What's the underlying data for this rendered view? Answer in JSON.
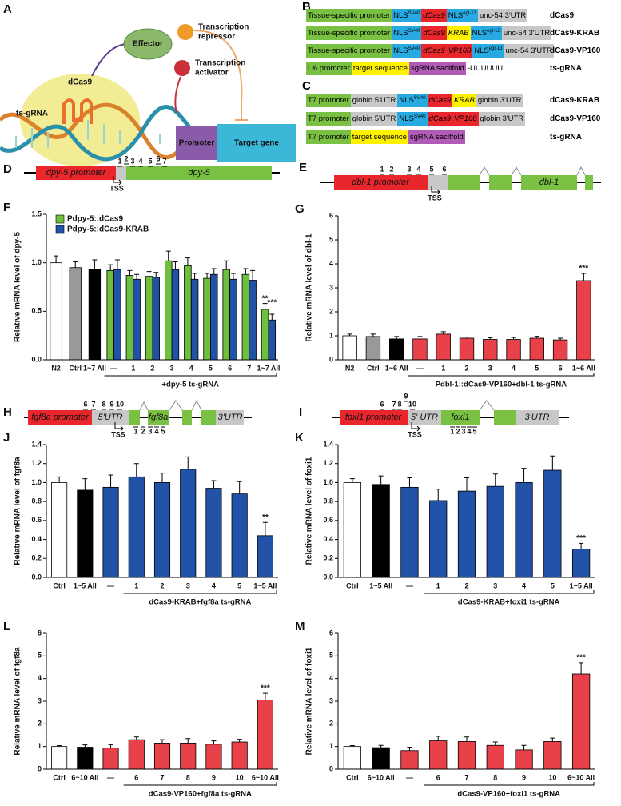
{
  "figure": {
    "panel_a": {
      "letter": "A",
      "effector": "Effector",
      "repressor": [
        "Transcription",
        "repressor"
      ],
      "activator": [
        "Transcription",
        "activator"
      ],
      "dcas9": "dCas9",
      "ts_grna": "ts-gRNA",
      "promoter": "Promoter",
      "target_gene": "Target gene"
    },
    "panel_b": {
      "letter": "B",
      "rows": [
        {
          "segments": [
            {
              "text": "Tissue-specific promoter",
              "color": "#7ac143"
            },
            {
              "text": "NLS",
              "sup": "SV40",
              "color": "#27aae1"
            },
            {
              "text": "dCas9",
              "color": "#e8262b",
              "italic": true
            },
            {
              "text": "NLS",
              "sup": "egl-13",
              "color": "#27aae1"
            },
            {
              "text": "unc-54 3'UTR",
              "color": "#c8c8c8"
            }
          ],
          "name": "dCas9"
        },
        {
          "segments": [
            {
              "text": "Tissue-specific promoter",
              "color": "#7ac143"
            },
            {
              "text": "NLS",
              "sup": "SV40",
              "color": "#27aae1"
            },
            {
              "text": "dCas9",
              "color": "#e8262b",
              "italic": true
            },
            {
              "text": "KRAB",
              "color": "#fff200",
              "italic": true
            },
            {
              "text": "NLS",
              "sup": "egl-13",
              "color": "#27aae1"
            },
            {
              "text": "unc-54 3'UTR",
              "color": "#c8c8c8"
            }
          ],
          "name": "dCas9-KRAB"
        },
        {
          "segments": [
            {
              "text": "Tissue-specific promoter",
              "color": "#7ac143"
            },
            {
              "text": "NLS",
              "sup": "SV40",
              "color": "#27aae1"
            },
            {
              "text": "dCas9",
              "color": "#e8262b",
              "italic": true
            },
            {
              "text": "VP160",
              "color": "#e8262b",
              "italic": true
            },
            {
              "text": "NLS",
              "sup": "egl-13",
              "color": "#27aae1"
            },
            {
              "text": "unc-54 3'UTR",
              "color": "#c8c8c8"
            }
          ],
          "name": "dCas9-VP160"
        },
        {
          "segments": [
            {
              "text": "U6 promoter",
              "color": "#7ac143"
            },
            {
              "text": "target sequence",
              "color": "#fff200"
            },
            {
              "text": "sgRNA saclffold",
              "color": "#b05bb5"
            },
            {
              "text": "-UUUUUU",
              "color": "#ffffff"
            }
          ],
          "name": "ts-gRNA"
        }
      ]
    },
    "panel_c": {
      "letter": "C",
      "rows": [
        {
          "segments": [
            {
              "text": "T7 promoter",
              "color": "#7ac143"
            },
            {
              "text": "globin 5'UTR",
              "color": "#c8c8c8"
            },
            {
              "text": "NLS",
              "sup": "SV40",
              "color": "#27aae1"
            },
            {
              "text": "dCas9",
              "color": "#e8262b",
              "italic": true
            },
            {
              "text": "KRAB",
              "color": "#fff200",
              "italic": true
            },
            {
              "text": "globin 3'UTR",
              "color": "#c8c8c8"
            }
          ],
          "name": "dCas9-KRAB"
        },
        {
          "segments": [
            {
              "text": "T7 promoter",
              "color": "#7ac143"
            },
            {
              "text": "globin 5'UTR",
              "color": "#c8c8c8"
            },
            {
              "text": "NLS",
              "sup": "SV40",
              "color": "#27aae1"
            },
            {
              "text": "dCas9",
              "color": "#e8262b",
              "italic": true
            },
            {
              "text": "VP160",
              "color": "#e8262b",
              "italic": true
            },
            {
              "text": "globin 3'UTR",
              "color": "#c8c8c8"
            }
          ],
          "name": "dCas9-VP160"
        },
        {
          "segments": [
            {
              "text": "T7 promoter",
              "color": "#7ac143"
            },
            {
              "text": "target sequence",
              "color": "#fff200"
            },
            {
              "text": "sgRNA saclffold",
              "color": "#b05bb5"
            }
          ],
          "name": "ts-gRNA"
        }
      ]
    },
    "panel_d": {
      "letter": "D",
      "promoter": "dpy-5 promoter",
      "gene": "dpy-5",
      "tss": "TSS",
      "sites": [
        "1",
        "2",
        "3",
        "4",
        "5",
        "6",
        "7"
      ]
    },
    "panel_e": {
      "letter": "E",
      "promoter": "dbl-1 promoter",
      "gene": "dbl-1",
      "tss": "TSS",
      "sites": [
        "1",
        "2",
        "3",
        "4",
        "5",
        "6"
      ]
    },
    "panel_h": {
      "letter": "H",
      "promoter": "fgf8a promoter",
      "utr5": "5'UTR",
      "gene": "fgf8a",
      "utr3": "3'UTR",
      "tss": "TSS",
      "sites": [
        "6",
        "7",
        "8",
        "9",
        "10"
      ],
      "sites_below": [
        "1",
        "2",
        "3",
        "4",
        "5"
      ]
    },
    "panel_i": {
      "letter": "I",
      "promoter": "foxi1 promoter",
      "utr5": "5' UTR",
      "gene": "foxi1",
      "utr3": "3'UTR",
      "tss": "TSS",
      "sites": [
        "6",
        "7",
        "8",
        "9",
        "10"
      ],
      "sites_below": [
        "1",
        "2",
        "3",
        "4",
        "5"
      ]
    }
  },
  "chart_data": [
    {
      "type": "bar",
      "letter": "F",
      "ylabel": "Relative mRNA level of dpy-5",
      "xlabel": "+dpy-5 ts-gRNA",
      "categories": [
        "N2",
        "Ctrl",
        "1~7 All",
        "—",
        "1",
        "2",
        "3",
        "4",
        "5",
        "6",
        "7",
        "1~7 All"
      ],
      "series": [
        {
          "colors": [
            "#ffffff",
            "#999999",
            "#000000",
            null,
            null,
            null,
            null,
            null,
            null,
            null,
            null,
            null
          ],
          "values": [
            1.0,
            0.95,
            0.93,
            null,
            null,
            null,
            null,
            null,
            null,
            null,
            null,
            null
          ],
          "errors": [
            0.07,
            0.06,
            0.1,
            null,
            null,
            null,
            null,
            null,
            null,
            null,
            null,
            null
          ]
        },
        {
          "name": "Pdpy-5::dCas9",
          "color": "#6fbf3f",
          "values": [
            null,
            null,
            null,
            0.92,
            0.87,
            0.86,
            1.02,
            0.97,
            0.84,
            0.93,
            0.88,
            0.52
          ],
          "errors": [
            null,
            null,
            null,
            0.06,
            0.05,
            0.05,
            0.1,
            0.08,
            0.05,
            0.09,
            0.06,
            0.06
          ]
        },
        {
          "name": "Pdpy-5::dCas9-KRAB",
          "color": "#2251a8",
          "values": [
            null,
            null,
            null,
            0.93,
            0.83,
            0.85,
            0.93,
            0.83,
            0.88,
            0.83,
            0.82,
            0.41
          ],
          "errors": [
            null,
            null,
            null,
            0.1,
            0.05,
            0.05,
            0.08,
            0.06,
            0.06,
            0.06,
            0.1,
            0.06
          ]
        }
      ],
      "annotations": [
        "**",
        "***"
      ],
      "ylim": [
        0,
        1.5
      ],
      "yticks": [
        {
          "value": 0,
          "label": "0.0"
        },
        {
          "value": 0.5,
          "label": "0.5"
        },
        {
          "value": 1.0,
          "label": "1.0"
        },
        {
          "value": 1.5,
          "label": "1.5"
        }
      ],
      "legend": "upper left"
    },
    {
      "type": "bar",
      "letter": "G",
      "ylabel": "Relative mRNA level of dbl-1",
      "xlabel": "Pdbl-1::dCas9-VP160+dbl-1 ts-gRNA",
      "categories": [
        "N2",
        "Ctrl",
        "1~6 All",
        "—",
        "1",
        "2",
        "3",
        "4",
        "5",
        "6",
        "1~6 All"
      ],
      "series": [
        {
          "colors": [
            "#ffffff",
            "#999999",
            "#000000",
            "#e8414a",
            "#e8414a",
            "#e8414a",
            "#e8414a",
            "#e8414a",
            "#e8414a",
            "#e8414a",
            "#e8414a"
          ],
          "values": [
            1.0,
            0.97,
            0.87,
            0.87,
            1.07,
            0.9,
            0.85,
            0.85,
            0.9,
            0.83,
            3.3
          ],
          "errors": [
            0.07,
            0.1,
            0.1,
            0.1,
            0.1,
            0.05,
            0.07,
            0.08,
            0.08,
            0.07,
            0.3
          ]
        }
      ],
      "annotations": [
        "***"
      ],
      "ylim": [
        0,
        6
      ],
      "yticks": [
        0,
        1,
        2,
        3,
        4,
        5,
        6
      ]
    },
    {
      "type": "bar",
      "letter": "J",
      "ylabel": "Relative mRNA level of fgf8a",
      "xlabel": "dCas9-KRAB+fgf8a ts-gRNA",
      "categories": [
        "Ctrl",
        "1~5 All",
        "—",
        "1",
        "2",
        "3",
        "4",
        "5",
        "1~5 All"
      ],
      "series": [
        {
          "colors": [
            "#ffffff",
            "#000000",
            "#2251a8",
            "#2251a8",
            "#2251a8",
            "#2251a8",
            "#2251a8",
            "#2251a8",
            "#2251a8"
          ],
          "values": [
            1.0,
            0.92,
            0.95,
            1.06,
            1.0,
            1.14,
            0.94,
            0.88,
            0.44
          ],
          "errors": [
            0.06,
            0.12,
            0.13,
            0.14,
            0.1,
            0.13,
            0.08,
            0.13,
            0.14
          ]
        }
      ],
      "annotations": [
        "**"
      ],
      "ylim": [
        0,
        1.4
      ],
      "yticks": [
        {
          "value": 0,
          "label": "0.0"
        },
        {
          "value": 0.2,
          "label": "0.2"
        },
        {
          "value": 0.4,
          "label": "0.4"
        },
        {
          "value": 0.6,
          "label": "0.6"
        },
        {
          "value": 0.8,
          "label": "0.8"
        },
        {
          "value": 1.0,
          "label": "1.0"
        },
        {
          "value": 1.2,
          "label": "1.2"
        },
        {
          "value": 1.4,
          "label": "1.4"
        }
      ]
    },
    {
      "type": "bar",
      "letter": "K",
      "ylabel": "Relative mRNA level of foxi1",
      "xlabel": "dCas9-KRAB+foxi1 ts-gRNA",
      "categories": [
        "Ctrl",
        "1~5 All",
        "—",
        "1",
        "2",
        "3",
        "4",
        "5",
        "1~5 All"
      ],
      "series": [
        {
          "colors": [
            "#ffffff",
            "#000000",
            "#2251a8",
            "#2251a8",
            "#2251a8",
            "#2251a8",
            "#2251a8",
            "#2251a8",
            "#2251a8"
          ],
          "values": [
            1.0,
            0.98,
            0.95,
            0.81,
            0.91,
            0.96,
            1.0,
            1.13,
            0.3
          ],
          "errors": [
            0.04,
            0.09,
            0.1,
            0.12,
            0.14,
            0.13,
            0.15,
            0.15,
            0.06
          ]
        }
      ],
      "annotations": [
        "***"
      ],
      "ylim": [
        0,
        1.4
      ],
      "yticks": [
        {
          "value": 0,
          "label": "0.0"
        },
        {
          "value": 0.2,
          "label": "0.2"
        },
        {
          "value": 0.4,
          "label": "0.4"
        },
        {
          "value": 0.6,
          "label": "0.6"
        },
        {
          "value": 0.8,
          "label": "0.8"
        },
        {
          "value": 1.0,
          "label": "1.0"
        },
        {
          "value": 1.2,
          "label": "1.2"
        },
        {
          "value": 1.4,
          "label": "1.4"
        }
      ]
    },
    {
      "type": "bar",
      "letter": "L",
      "ylabel": "Relative mRNA level of fgf8a",
      "xlabel": "dCas9-VP160+fgf8a ts-gRNA",
      "categories": [
        "Ctrl",
        "6~10 All",
        "—",
        "6",
        "7",
        "8",
        "9",
        "10",
        "6~10 All"
      ],
      "series": [
        {
          "colors": [
            "#ffffff",
            "#000000",
            "#e8414a",
            "#e8414a",
            "#e8414a",
            "#e8414a",
            "#e8414a",
            "#e8414a",
            "#e8414a"
          ],
          "values": [
            1.0,
            0.97,
            0.93,
            1.3,
            1.15,
            1.15,
            1.1,
            1.2,
            3.05
          ],
          "errors": [
            0.04,
            0.1,
            0.15,
            0.12,
            0.15,
            0.2,
            0.15,
            0.12,
            0.3
          ]
        }
      ],
      "annotations": [
        "***"
      ],
      "ylim": [
        0,
        6
      ],
      "yticks": [
        0,
        1,
        2,
        3,
        4,
        5,
        6
      ]
    },
    {
      "type": "bar",
      "letter": "M",
      "ylabel": "Relative mRNA level of foxi1",
      "xlabel": "dCas9-VP160+foxi1 ts-gRNA",
      "categories": [
        "Ctrl",
        "6~10 All",
        "—",
        "6",
        "7",
        "8",
        "9",
        "10",
        "6~10 All"
      ],
      "series": [
        {
          "colors": [
            "#ffffff",
            "#000000",
            "#e8414a",
            "#e8414a",
            "#e8414a",
            "#e8414a",
            "#e8414a",
            "#e8414a",
            "#e8414a"
          ],
          "values": [
            1.0,
            0.95,
            0.82,
            1.25,
            1.22,
            1.05,
            0.85,
            1.22,
            4.2
          ],
          "errors": [
            0.04,
            0.1,
            0.15,
            0.2,
            0.2,
            0.15,
            0.2,
            0.15,
            0.5
          ]
        }
      ],
      "annotations": [
        "***"
      ],
      "ylim": [
        0,
        6
      ],
      "yticks": [
        0,
        1,
        2,
        3,
        4,
        5,
        6
      ]
    }
  ]
}
